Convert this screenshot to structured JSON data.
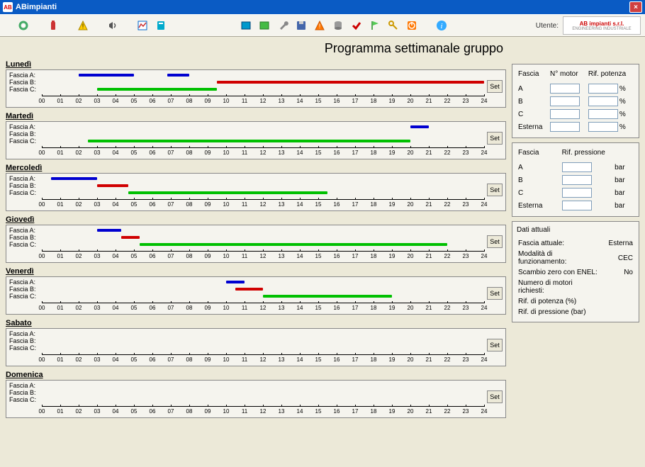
{
  "window": {
    "title": "ABimpianti"
  },
  "toolbar": {
    "utente_label": "Utente:",
    "logo_main": "AB impianti s.r.l.",
    "logo_sub": "ENGINEERING INDUSTRIALE",
    "icons": [
      "gear-icon",
      "battery-icon",
      "warning-icon",
      "horn-icon",
      "chart-icon",
      "report-icon",
      "app1-icon",
      "app2-icon",
      "wrench-icon",
      "disk-icon",
      "alert-icon",
      "db-icon",
      "check-icon",
      "flag-icon",
      "key-icon",
      "power-icon",
      "info-icon"
    ]
  },
  "page_title": "Programma settimanale gruppo",
  "schedule": {
    "hours": 24,
    "axis_labels": [
      "00",
      "01",
      "02",
      "03",
      "04",
      "05",
      "06",
      "07",
      "08",
      "09",
      "10",
      "11",
      "12",
      "13",
      "14",
      "15",
      "16",
      "17",
      "18",
      "19",
      "20",
      "21",
      "22",
      "23",
      "24"
    ],
    "fascia_labels": [
      "Fascia A:",
      "Fascia B:",
      "Fascia C:"
    ],
    "set_label": "Set",
    "colors": {
      "A": "#0000d0",
      "B": "#d00000",
      "C": "#00c000",
      "axis": "#000000",
      "box_bg": "#f5f4ee"
    },
    "days": [
      {
        "name": "Lunedì",
        "A": [
          [
            2,
            5
          ],
          [
            6.8,
            8
          ]
        ],
        "B": [
          [
            9.5,
            24
          ]
        ],
        "C": [
          [
            3,
            9.5
          ]
        ]
      },
      {
        "name": "Martedì",
        "A": [
          [
            20,
            21
          ]
        ],
        "B": [],
        "C": [
          [
            2.5,
            20
          ]
        ]
      },
      {
        "name": "Mercoledì",
        "A": [
          [
            0.5,
            3
          ]
        ],
        "B": [
          [
            3,
            4.7
          ]
        ],
        "C": [
          [
            4.7,
            15.5
          ]
        ]
      },
      {
        "name": "Giovedì",
        "A": [
          [
            3,
            4.3
          ]
        ],
        "B": [
          [
            4.3,
            5.3
          ]
        ],
        "C": [
          [
            5.3,
            22
          ]
        ]
      },
      {
        "name": "Venerdì",
        "A": [
          [
            10,
            11
          ]
        ],
        "B": [
          [
            10.5,
            12
          ]
        ],
        "C": [
          [
            12,
            19
          ]
        ]
      },
      {
        "name": "Sabato",
        "A": [],
        "B": [],
        "C": []
      },
      {
        "name": "Domenica",
        "A": [],
        "B": [],
        "C": []
      }
    ]
  },
  "motor_panel": {
    "headers": [
      "Fascia",
      "N° motor",
      "Rif. potenza"
    ],
    "rows": [
      "A",
      "B",
      "C",
      "Esterna"
    ],
    "unit": "%"
  },
  "pressure_panel": {
    "headers": [
      "Fascia",
      "Rif. pressione"
    ],
    "rows": [
      "A",
      "B",
      "C",
      "Esterna"
    ],
    "unit": "bar"
  },
  "status_panel": {
    "title": "Dati attuali",
    "rows": [
      {
        "label": "Fascia attuale:",
        "value": "Esterna"
      },
      {
        "label": "Modalità di funzionamento:",
        "value": "CEC"
      },
      {
        "label": "Scambio zero con ENEL:",
        "value": "No"
      },
      {
        "label": "Numero di motori richiesti:",
        "value": ""
      },
      {
        "label": "Rif. di potenza (%)",
        "value": ""
      },
      {
        "label": "Rif. di pressione (bar)",
        "value": ""
      }
    ]
  }
}
